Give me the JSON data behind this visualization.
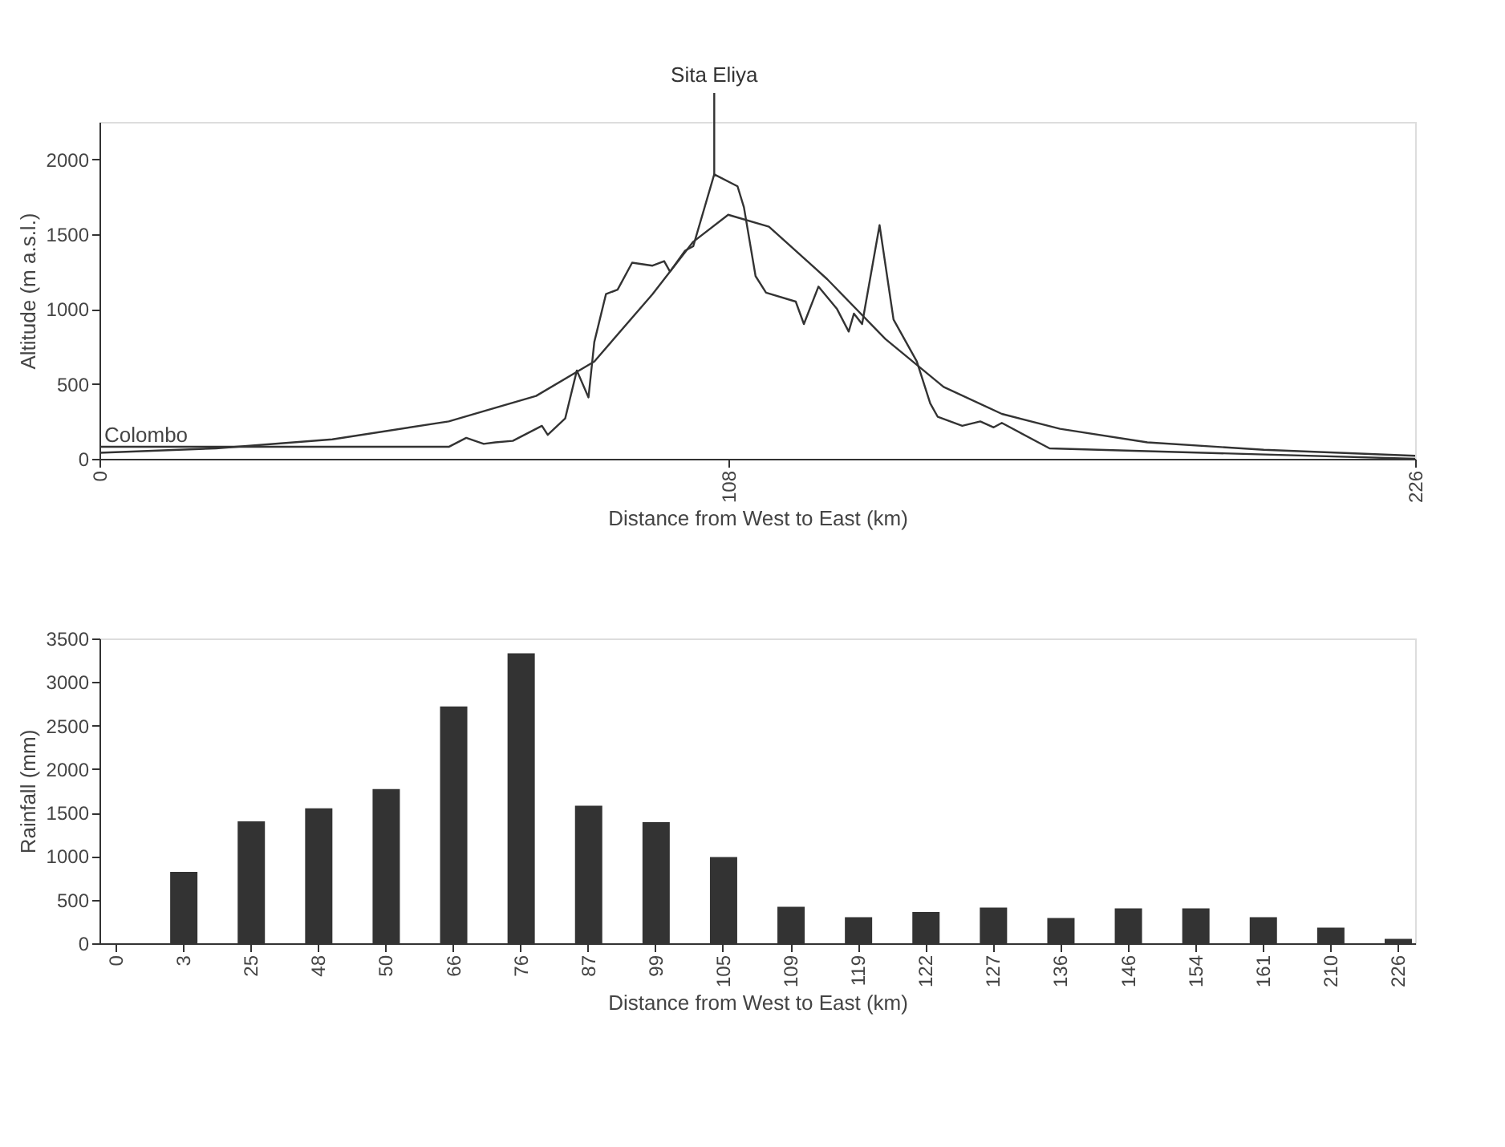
{
  "chart_data": [
    {
      "type": "line",
      "xlabel": "Distance from West to East  (km)",
      "ylabel": "Altitude (m a.s.l.)",
      "xlim": [
        0,
        226
      ],
      "xticks": [
        0,
        108,
        226
      ],
      "ylim": [
        0,
        2250
      ],
      "yticks": [
        0,
        500,
        1000,
        1500,
        2000
      ],
      "grid": false,
      "marker": "none",
      "line_style": "solid",
      "annotations": [
        {
          "text": "Sita Eliya",
          "x": 105.6,
          "y": 1900
        },
        {
          "text": "Colombo",
          "x": 0,
          "y": 80
        }
      ],
      "series": [
        {
          "color": "#333333",
          "x": [
            0,
            60,
            63,
            66,
            68,
            71,
            76,
            77,
            80,
            82,
            84,
            85,
            87,
            89,
            91.5,
            95,
            97,
            98,
            100.6,
            102,
            105.6,
            109.6,
            110.7,
            112.7,
            114.5,
            119.6,
            121,
            123.5,
            126.7,
            128.7,
            129.6,
            131,
            134,
            136.4,
            140.4,
            142.7,
            144,
            148.2,
            151.3,
            153.6,
            155,
            163.2,
            226
          ],
          "values": [
            80,
            80,
            140,
            100,
            110,
            120,
            220,
            160,
            270,
            590,
            410,
            780,
            1100,
            1130,
            1310,
            1290,
            1320,
            1250,
            1390,
            1420,
            1900,
            1820,
            1680,
            1220,
            1110,
            1050,
            900,
            1150,
            1000,
            850,
            970,
            900,
            1560,
            930,
            650,
            370,
            280,
            220,
            250,
            210,
            240,
            70,
            0
          ]
        },
        {
          "color": "#333333",
          "x": [
            0,
            20,
            40,
            60,
            75,
            85,
            95,
            102,
            108,
            115,
            125,
            135,
            145,
            155,
            165,
            180,
            200,
            226
          ],
          "values": [
            40,
            70,
            130,
            250,
            420,
            650,
            1100,
            1450,
            1630,
            1550,
            1200,
            800,
            480,
            300,
            200,
            110,
            60,
            20
          ]
        }
      ]
    },
    {
      "type": "bar",
      "xlabel": "Distance from West to East  (km)",
      "ylabel": "Rainfall (mm)",
      "ylim": [
        0,
        3500
      ],
      "yticks": [
        0,
        500,
        1000,
        1500,
        2000,
        2500,
        3000,
        3500
      ],
      "grid": false,
      "categories": [
        "0",
        "3",
        "25",
        "48",
        "50",
        "66",
        "76",
        "87",
        "99",
        "105",
        "109",
        "119",
        "122",
        "127",
        "136",
        "146",
        "154",
        "161",
        "210",
        "226"
      ],
      "values": [
        null,
        820,
        1400,
        1550,
        1770,
        2720,
        3330,
        1580,
        1390,
        990,
        420,
        300,
        360,
        410,
        290,
        400,
        400,
        300,
        180,
        50
      ],
      "color": "#333333"
    }
  ]
}
